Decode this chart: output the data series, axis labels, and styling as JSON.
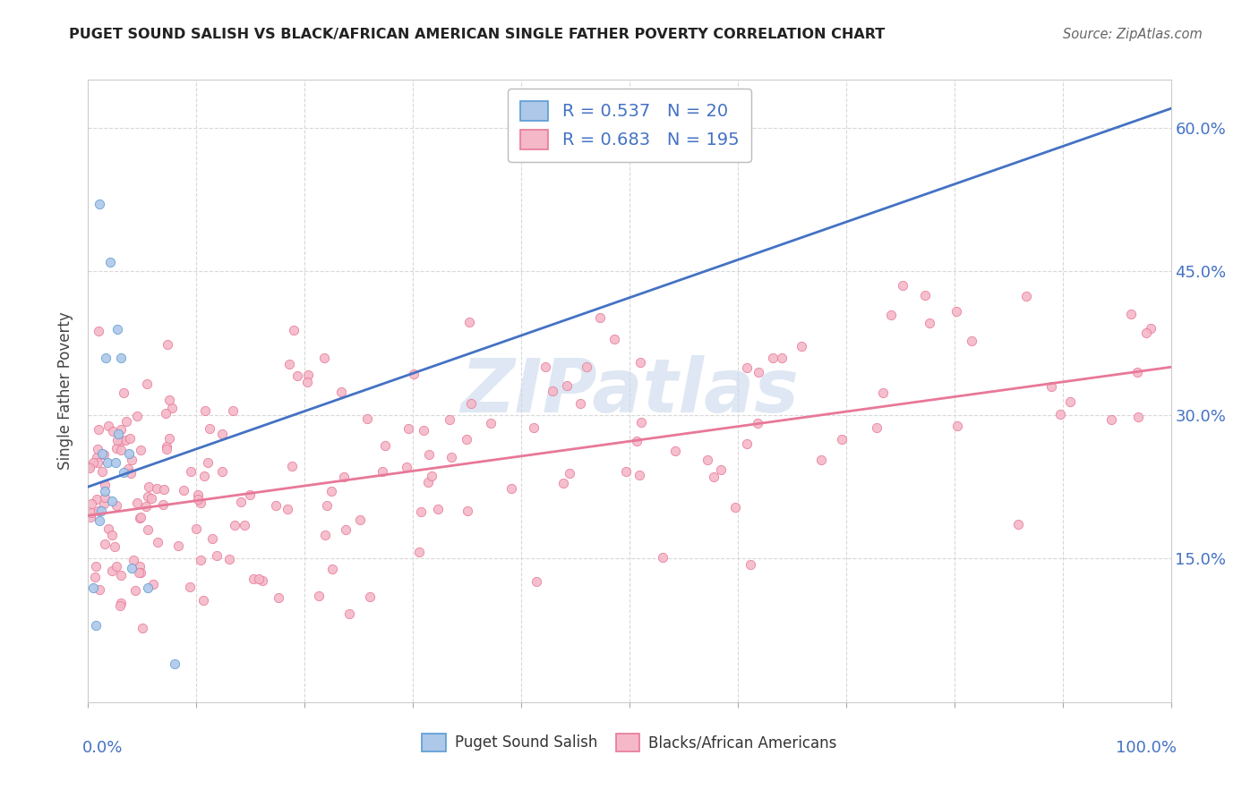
{
  "title": "PUGET SOUND SALISH VS BLACK/AFRICAN AMERICAN SINGLE FATHER POVERTY CORRELATION CHART",
  "source": "Source: ZipAtlas.com",
  "ylabel": "Single Father Poverty",
  "xlim": [
    0.0,
    1.0
  ],
  "ylim": [
    0.0,
    0.65
  ],
  "ytick_vals": [
    0.15,
    0.3,
    0.45,
    0.6
  ],
  "ytick_labels": [
    "15.0%",
    "30.0%",
    "45.0%",
    "60.0%"
  ],
  "blue_R": 0.537,
  "blue_N": 20,
  "pink_R": 0.683,
  "pink_N": 195,
  "blue_color": "#adc8e8",
  "blue_edge_color": "#5b9bd5",
  "blue_line_color": "#4472c4",
  "pink_color": "#f4b8c8",
  "pink_edge_color": "#e87898",
  "pink_line_color": "#e87898",
  "legend_label_blue": "Puget Sound Salish",
  "legend_label_pink": "Blacks/African Americans",
  "legend_text_color": "#4472c4",
  "blue_intercept": 0.225,
  "blue_slope": 0.395,
  "pink_intercept": 0.195,
  "pink_slope": 0.155,
  "blue_x": [
    0.005,
    0.007,
    0.01,
    0.01,
    0.012,
    0.013,
    0.015,
    0.016,
    0.018,
    0.02,
    0.022,
    0.025,
    0.027,
    0.028,
    0.03,
    0.033,
    0.038,
    0.04,
    0.055,
    0.08
  ],
  "blue_y": [
    0.12,
    0.08,
    0.19,
    0.52,
    0.2,
    0.26,
    0.22,
    0.36,
    0.25,
    0.46,
    0.21,
    0.25,
    0.39,
    0.28,
    0.36,
    0.24,
    0.26,
    0.14,
    0.12,
    0.04
  ],
  "watermark_text": "ZIPatlas",
  "watermark_color": "#c8d8ec",
  "grid_color": "#d8d8d8",
  "spine_color": "#cccccc"
}
